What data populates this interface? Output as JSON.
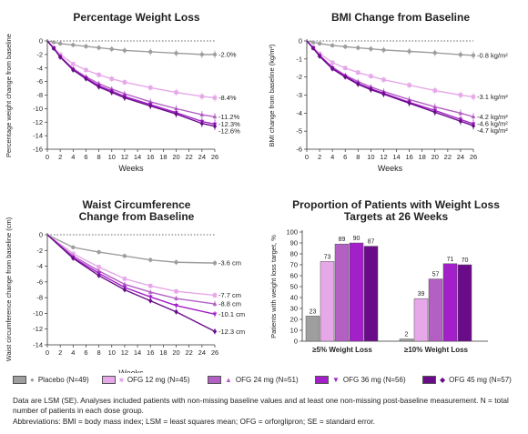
{
  "charts": [
    {
      "title": "Percentage Weight Loss",
      "ylabel": "Percentage weight change from baseline",
      "xlabel": "Weeks",
      "yticks": [
        0,
        -2,
        -4,
        -6,
        -8,
        -10,
        -12,
        -14,
        -16
      ]
    },
    {
      "title": "BMI Change from Baseline",
      "ylabel": "BMI change from baseline (kg/m²)",
      "xlabel": "Weeks",
      "yticks": [
        0,
        -1,
        -2,
        -3,
        -4,
        -5,
        -6
      ]
    },
    {
      "title_line1": "Waist Circumference",
      "title_line2": "Change from Baseline",
      "ylabel": "Waist circumference change from baseline (cm)",
      "xlabel": "Weeks",
      "yticks": [
        0,
        -2,
        -4,
        -6,
        -8,
        -10,
        -12,
        -14
      ]
    },
    {
      "title_line1": "Proportion of Patients with Weight Loss",
      "title_line2": "Targets at 26 Weeks",
      "ylabel": "Patients with weight loss target, %",
      "yticks": [
        0,
        10,
        20,
        30,
        40,
        50,
        60,
        70,
        80,
        90,
        100
      ]
    }
  ],
  "chart_data": [
    {
      "type": "line",
      "title": "Percentage Weight Loss",
      "xlabel": "Weeks",
      "ylabel": "Percentage weight change from baseline",
      "x": [
        0,
        1,
        2,
        4,
        6,
        8,
        10,
        12,
        16,
        20,
        24,
        26
      ],
      "xticks": [
        0,
        2,
        4,
        6,
        8,
        10,
        12,
        14,
        16,
        18,
        20,
        22,
        24,
        26
      ],
      "ylim": [
        -16,
        0
      ],
      "series": [
        {
          "name": "Placebo",
          "values": [
            0,
            -0.2,
            -0.4,
            -0.6,
            -0.8,
            -1.0,
            -1.2,
            -1.4,
            -1.6,
            -1.8,
            -2.0,
            -2.0
          ],
          "end_label": "-2.0%"
        },
        {
          "name": "OFG 12 mg",
          "values": [
            0,
            -1.0,
            -2.0,
            -3.4,
            -4.3,
            -5.0,
            -5.6,
            -6.1,
            -6.9,
            -7.6,
            -8.2,
            -8.4
          ],
          "end_label": "-8.4%"
        },
        {
          "name": "OFG 24 mg",
          "values": [
            0,
            -1.1,
            -2.3,
            -4.1,
            -5.3,
            -6.3,
            -7.1,
            -7.8,
            -9.0,
            -10.0,
            -10.9,
            -11.2
          ],
          "end_label": "-11.2%"
        },
        {
          "name": "OFG 36 mg",
          "values": [
            0,
            -1.1,
            -2.3,
            -4.2,
            -5.5,
            -6.6,
            -7.4,
            -8.2,
            -9.4,
            -10.6,
            -11.9,
            -12.3
          ],
          "end_label": "-12.3%"
        },
        {
          "name": "OFG 45 mg",
          "values": [
            0,
            -1.1,
            -2.4,
            -4.3,
            -5.6,
            -6.8,
            -7.6,
            -8.4,
            -9.6,
            -10.8,
            -12.2,
            -12.6
          ],
          "end_label": "-12.6%"
        }
      ]
    },
    {
      "type": "line",
      "title": "BMI Change from Baseline",
      "xlabel": "Weeks",
      "ylabel": "BMI change from baseline (kg/m²)",
      "x": [
        0,
        1,
        2,
        4,
        6,
        8,
        10,
        12,
        16,
        20,
        24,
        26
      ],
      "xticks": [
        0,
        2,
        4,
        6,
        8,
        10,
        12,
        14,
        16,
        18,
        20,
        22,
        24,
        26
      ],
      "ylim": [
        -6,
        0
      ],
      "series": [
        {
          "name": "Placebo",
          "values": [
            0,
            -0.08,
            -0.15,
            -0.25,
            -0.32,
            -0.38,
            -0.44,
            -0.5,
            -0.58,
            -0.66,
            -0.76,
            -0.8
          ],
          "end_label": "-0.8 kg/m²"
        },
        {
          "name": "OFG 12 mg",
          "values": [
            0,
            -0.35,
            -0.7,
            -1.2,
            -1.5,
            -1.75,
            -1.95,
            -2.15,
            -2.45,
            -2.75,
            -3.0,
            -3.1
          ],
          "end_label": "-3.1 kg/m²"
        },
        {
          "name": "OFG 24 mg",
          "values": [
            0,
            -0.4,
            -0.8,
            -1.45,
            -1.9,
            -2.25,
            -2.55,
            -2.8,
            -3.25,
            -3.65,
            -4.0,
            -4.2
          ],
          "end_label": "-4.2 kg/m²"
        },
        {
          "name": "OFG 36 mg",
          "values": [
            0,
            -0.4,
            -0.8,
            -1.5,
            -1.95,
            -2.35,
            -2.65,
            -2.9,
            -3.4,
            -3.85,
            -4.35,
            -4.6
          ],
          "end_label": "-4.6 kg/m²"
        },
        {
          "name": "OFG 45 mg",
          "values": [
            0,
            -0.4,
            -0.85,
            -1.55,
            -2.0,
            -2.4,
            -2.7,
            -2.95,
            -3.45,
            -3.95,
            -4.45,
            -4.7
          ],
          "end_label": "-4.7 kg/m²"
        }
      ]
    },
    {
      "type": "line",
      "title": "Waist Circumference Change from Baseline",
      "xlabel": "Weeks",
      "ylabel": "Waist circumference change from baseline (cm)",
      "x": [
        0,
        4,
        8,
        12,
        16,
        20,
        26
      ],
      "xticks": [
        0,
        2,
        4,
        6,
        8,
        10,
        12,
        14,
        16,
        18,
        20,
        22,
        24,
        26
      ],
      "ylim": [
        -14,
        0
      ],
      "series": [
        {
          "name": "Placebo",
          "values": [
            0,
            -1.6,
            -2.2,
            -2.7,
            -3.2,
            -3.5,
            -3.6
          ],
          "end_label": "-3.6 cm"
        },
        {
          "name": "OFG 12 mg",
          "values": [
            0,
            -2.4,
            -4.1,
            -5.6,
            -6.5,
            -7.2,
            -7.7
          ],
          "end_label": "-7.7 cm"
        },
        {
          "name": "OFG 24 mg",
          "values": [
            0,
            -2.7,
            -4.6,
            -6.3,
            -7.3,
            -8.1,
            -8.8
          ],
          "end_label": "-8.8 cm"
        },
        {
          "name": "OFG 36 mg",
          "values": [
            0,
            -2.9,
            -4.9,
            -6.7,
            -7.9,
            -9.0,
            -10.1
          ],
          "end_label": "-10.1 cm"
        },
        {
          "name": "OFG 45 mg",
          "values": [
            0,
            -3.0,
            -5.2,
            -7.0,
            -8.4,
            -9.8,
            -12.3
          ],
          "end_label": "-12.3 cm"
        }
      ]
    },
    {
      "type": "bar",
      "title": "Proportion of Patients with Weight Loss Targets at 26 Weeks",
      "ylabel": "Patients with weight loss target, %",
      "ylim": [
        0,
        100
      ],
      "categories": [
        "≥5% Weight Loss",
        "≥10% Weight Loss"
      ],
      "series": [
        {
          "name": "Placebo",
          "values": [
            23,
            2
          ]
        },
        {
          "name": "OFG 12 mg",
          "values": [
            73,
            39
          ]
        },
        {
          "name": "OFG 24 mg",
          "values": [
            89,
            57
          ]
        },
        {
          "name": "OFG 36 mg",
          "values": [
            90,
            71
          ]
        },
        {
          "name": "OFG 45 mg",
          "values": [
            87,
            70
          ]
        }
      ]
    }
  ],
  "series_style": [
    {
      "color": "#9e9e9e",
      "marker": "circle"
    },
    {
      "color": "#e6a8e8",
      "marker": "square"
    },
    {
      "color": "#b45fc4",
      "marker": "triangle-up"
    },
    {
      "color": "#a21fc9",
      "marker": "triangle-down"
    },
    {
      "color": "#6a0c8a",
      "marker": "diamond"
    }
  ],
  "legend": [
    {
      "label": "Placebo (N=49)"
    },
    {
      "label": "OFG 12 mg (N=45)"
    },
    {
      "label": "OFG 24 mg (N=51)"
    },
    {
      "label": "OFG 36 mg (N=56)"
    },
    {
      "label": "OFG 45 mg (N=57)"
    }
  ],
  "footnotes": {
    "line1": "Data are LSM (SE). Analyses included patients with non-missing baseline values and at least one non-missing post-baseline measurement.  N = total number of patients in each dose group.",
    "line2": "Abbreviations: BMI = body mass index; LSM = least squares mean; OFG = orforglipron; SE = standard error."
  }
}
